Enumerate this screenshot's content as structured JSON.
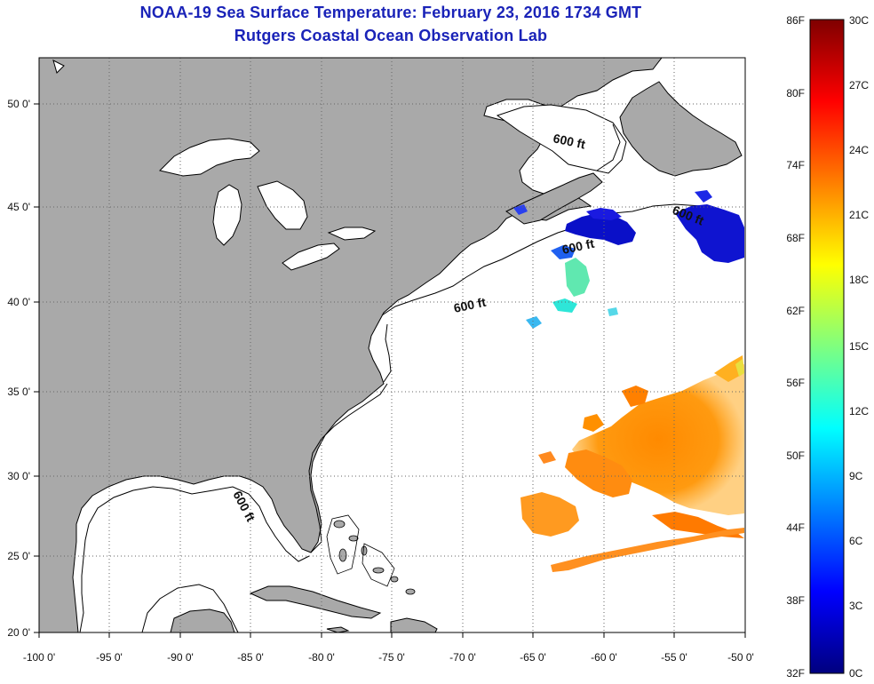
{
  "title": {
    "line1": "NOAA-19 Sea Surface Temperature:  February 23, 2016 1734 GMT",
    "line2": "Rutgers Coastal Ocean Observation Lab"
  },
  "map": {
    "lon_labels": [
      "-100 0'",
      "-95 0'",
      "-90 0'",
      "-85 0'",
      "-80 0'",
      "-75 0'",
      "-70 0'",
      "-65 0'",
      "-60 0'",
      "-55 0'",
      "-50 0'"
    ],
    "lat_labels": [
      "50 0'",
      "45 0'",
      "40 0'",
      "35 0'",
      "30 0'",
      "25 0'",
      "20 0'"
    ],
    "isobath_labels": [
      "600 ft",
      "600 ft",
      "600 ft",
      "600 ft",
      "600 ft"
    ],
    "colors": {
      "land": "#a9a9a9",
      "ocean": "#ffffff",
      "grid": "#666666",
      "coast": "#000000"
    }
  },
  "colorbar": {
    "fahrenheit_labels": [
      "86F",
      "80F",
      "74F",
      "68F",
      "62F",
      "56F",
      "50F",
      "44F",
      "38F",
      "32F"
    ],
    "celsius_labels": [
      "30C",
      "27C",
      "24C",
      "21C",
      "18C",
      "15C",
      "12C",
      "9C",
      "6C",
      "3C",
      "0C"
    ],
    "colormap": [
      "#00007f",
      "#0000ff",
      "#007fff",
      "#00ffff",
      "#7fff7f",
      "#ffff00",
      "#ff7f00",
      "#ff0000",
      "#7f0000"
    ]
  }
}
